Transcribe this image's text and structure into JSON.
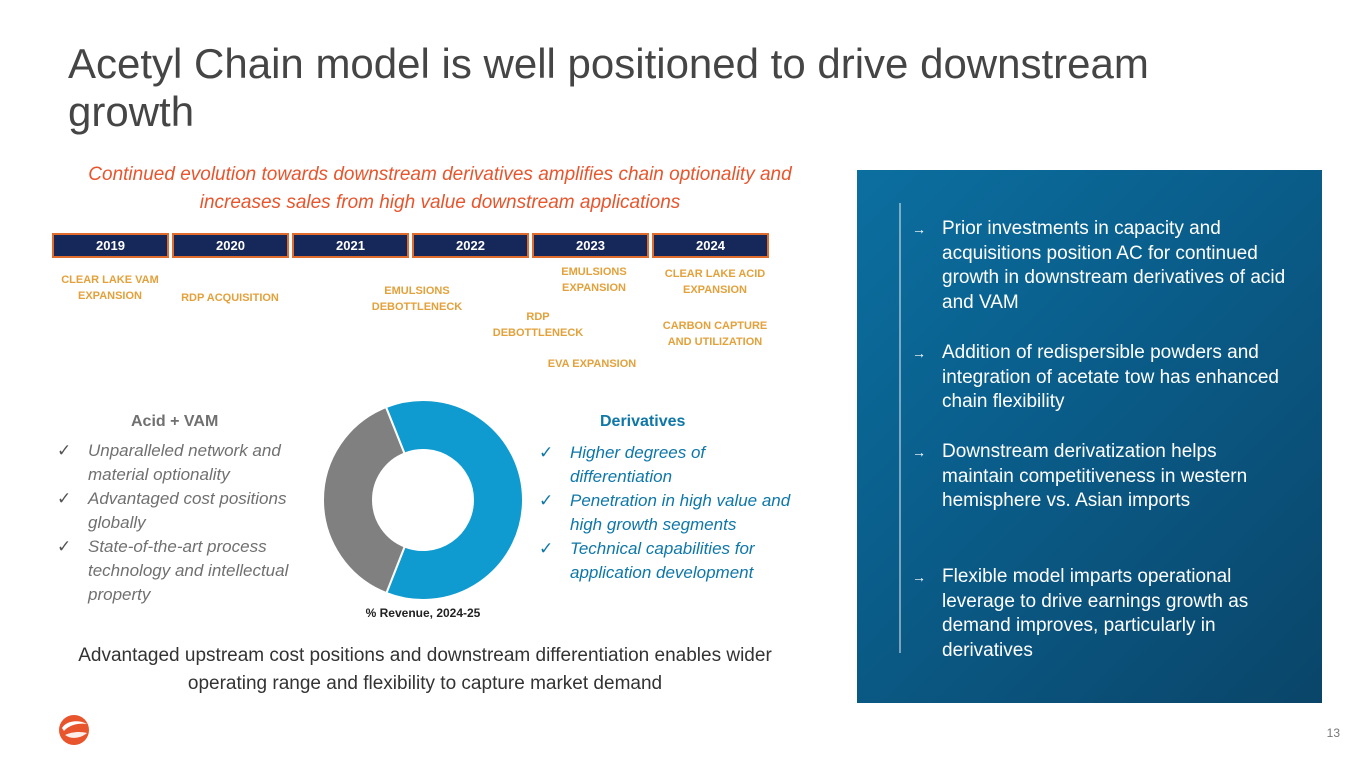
{
  "title": "Acetyl Chain model is well positioned to drive downstream growth",
  "subtitle": "Continued evolution towards downstream derivatives amplifies chain optionality and increases sales from high value downstream applications",
  "timeline": {
    "years": [
      "2019",
      "2020",
      "2021",
      "2022",
      "2023",
      "2024"
    ],
    "events": [
      "CLEAR LAKE VAM\nEXPANSION",
      "RDP ACQUISITION",
      "EMULSIONS\nDEBOTTLENECK",
      "RDP\nDEBOTTLENECK",
      "EMULSIONS\nEXPANSION",
      "EVA EXPANSION",
      "CLEAR LAKE ACID\nEXPANSION",
      "CARBON CAPTURE\nAND UTILIZATION"
    ]
  },
  "left_col": {
    "heading": "Acid + VAM",
    "items": [
      "Unparalleled network and material optionality",
      "Advantaged cost positions globally",
      "State-of-the-art  process technology and intellectual property"
    ]
  },
  "right_col": {
    "heading": "Derivatives",
    "items": [
      "Higher degrees of differentiation",
      "Penetration in high value and high growth segments",
      "Technical capabilities for application development"
    ]
  },
  "check_glyph": "✓",
  "donut": {
    "label": "% Revenue, 2024-25",
    "segments": [
      {
        "name": "Derivatives",
        "value": 62,
        "color": "#0f9bd0"
      },
      {
        "name": "Acid + VAM",
        "value": 38,
        "color": "#808080"
      }
    ]
  },
  "bottom_text": "Advantaged upstream cost positions and downstream differentiation enables wider operating range and flexibility to capture market demand",
  "panel": {
    "arrow": "→",
    "items": [
      "Prior investments in capacity and acquisitions position AC for continued growth in downstream derivatives of acid and VAM",
      "Addition of redispersible powders and integration of acetate tow has enhanced chain flexibility",
      "Downstream derivatization helps maintain competitiveness in western hemisphere vs. Asian imports",
      "Flexible model imparts operational leverage to drive earnings growth as demand improves, particularly in derivatives"
    ]
  },
  "colors": {
    "accent": "#e8552d",
    "navy": "#16275a",
    "gold": "#e3a13b",
    "blue": "#0e77a8"
  },
  "page_number": "13"
}
